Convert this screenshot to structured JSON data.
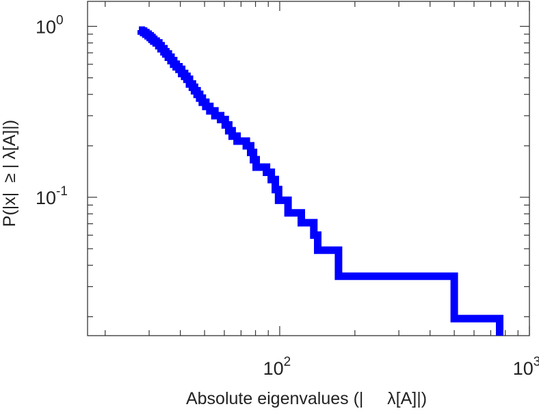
{
  "chart_data": {
    "type": "line",
    "title": "",
    "xlabel": "Absolute eigenvalues (|     λ[A]|)",
    "ylabel": "P(|x|  ≥ | λ[A]|)",
    "x_scale": "log",
    "y_scale": "log",
    "xlim": [
      17,
      1000
    ],
    "ylim": [
      0.0155,
      1.4
    ],
    "x_ticks": [
      {
        "value": 100,
        "base": "10",
        "exp": "2"
      },
      {
        "value": 1000,
        "base": "10",
        "exp": "3"
      }
    ],
    "y_ticks": [
      {
        "value": 1,
        "base": "10",
        "exp": "0"
      },
      {
        "value": 0.1,
        "base": "10",
        "exp": "-1"
      }
    ],
    "grid": false,
    "line_color": "#0000ff",
    "series": [
      {
        "points": [
          [
            27.3,
            0.95
          ],
          [
            27.9,
            0.94
          ],
          [
            28.5,
            0.92
          ],
          [
            29.1,
            0.9
          ],
          [
            29.7,
            0.88
          ],
          [
            30.3,
            0.86
          ],
          [
            30.8,
            0.84
          ],
          [
            31.3,
            0.82
          ],
          [
            32.0,
            0.8
          ],
          [
            32.8,
            0.77
          ],
          [
            33.5,
            0.74
          ],
          [
            34.4,
            0.71
          ],
          [
            35.0,
            0.69
          ],
          [
            35.8,
            0.66
          ],
          [
            36.7,
            0.63
          ],
          [
            37.6,
            0.6
          ],
          [
            38.5,
            0.58
          ],
          [
            39.5,
            0.56
          ],
          [
            40.5,
            0.53
          ],
          [
            41.6,
            0.51
          ],
          [
            42.5,
            0.49
          ],
          [
            43.5,
            0.46
          ],
          [
            44.7,
            0.44
          ],
          [
            45.6,
            0.42
          ],
          [
            46.7,
            0.4
          ],
          [
            47.8,
            0.38
          ],
          [
            49.0,
            0.36
          ],
          [
            50.6,
            0.34
          ],
          [
            52.5,
            0.32
          ],
          [
            55.0,
            0.3
          ],
          [
            58.0,
            0.285
          ],
          [
            60.5,
            0.265
          ],
          [
            62.5,
            0.245
          ],
          [
            64.5,
            0.228
          ],
          [
            67.5,
            0.213
          ],
          [
            73.5,
            0.2
          ],
          [
            76.5,
            0.183
          ],
          [
            78.5,
            0.166
          ],
          [
            80.5,
            0.15
          ],
          [
            88.5,
            0.14
          ],
          [
            92.5,
            0.127
          ],
          [
            96.0,
            0.111
          ],
          [
            99.0,
            0.096
          ],
          [
            108.0,
            0.081
          ],
          [
            122.0,
            0.071
          ],
          [
            137.0,
            0.06
          ],
          [
            142.0,
            0.049
          ],
          [
            172.0,
            0.0345
          ],
          [
            500.0,
            0.0195
          ],
          [
            760.0,
            0.0155
          ]
        ]
      }
    ]
  }
}
